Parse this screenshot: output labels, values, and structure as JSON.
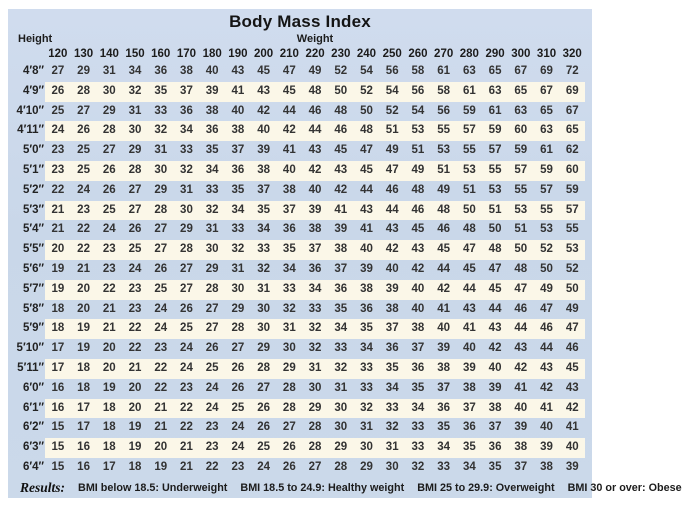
{
  "colors": {
    "panel_blue": "#cbd8ea",
    "stripe_cream": "#fbf7e8",
    "margin_white": "#ffffff",
    "text": "#333333"
  },
  "chart_data": {
    "type": "table",
    "title": "Body Mass Index",
    "row_header_label": "Height",
    "col_header_label": "Weight",
    "columns": [
      120,
      130,
      140,
      150,
      160,
      170,
      180,
      190,
      200,
      210,
      220,
      230,
      240,
      250,
      260,
      270,
      280,
      290,
      300,
      310,
      320
    ],
    "rows": [
      {
        "height": "4′8″",
        "values": [
          27,
          29,
          31,
          34,
          36,
          38,
          40,
          43,
          45,
          47,
          49,
          52,
          54,
          56,
          58,
          61,
          63,
          65,
          67,
          69,
          72
        ]
      },
      {
        "height": "4′9″",
        "values": [
          26,
          28,
          30,
          32,
          35,
          37,
          39,
          41,
          43,
          45,
          48,
          50,
          52,
          54,
          56,
          58,
          61,
          63,
          65,
          67,
          69
        ]
      },
      {
        "height": "4′10″",
        "values": [
          25,
          27,
          29,
          31,
          33,
          36,
          38,
          40,
          42,
          44,
          46,
          48,
          50,
          52,
          54,
          56,
          59,
          61,
          63,
          65,
          67
        ]
      },
      {
        "height": "4′11″",
        "values": [
          24,
          26,
          28,
          30,
          32,
          34,
          36,
          38,
          40,
          42,
          44,
          46,
          48,
          51,
          53,
          55,
          57,
          59,
          60,
          63,
          65
        ]
      },
      {
        "height": "5′0″",
        "values": [
          23,
          25,
          27,
          29,
          31,
          33,
          35,
          37,
          39,
          41,
          43,
          45,
          47,
          49,
          51,
          53,
          55,
          57,
          59,
          61,
          62
        ]
      },
      {
        "height": "5′1″",
        "values": [
          23,
          25,
          26,
          28,
          30,
          32,
          34,
          36,
          38,
          40,
          42,
          43,
          45,
          47,
          49,
          51,
          53,
          55,
          57,
          59,
          60
        ]
      },
      {
        "height": "5′2″",
        "values": [
          22,
          24,
          26,
          27,
          29,
          31,
          33,
          35,
          37,
          38,
          40,
          42,
          44,
          46,
          48,
          49,
          51,
          53,
          55,
          57,
          59
        ]
      },
      {
        "height": "5′3″",
        "values": [
          21,
          23,
          25,
          27,
          28,
          30,
          32,
          34,
          35,
          37,
          39,
          41,
          43,
          44,
          46,
          48,
          50,
          51,
          53,
          55,
          57
        ]
      },
      {
        "height": "5′4″",
        "values": [
          21,
          22,
          24,
          26,
          27,
          29,
          31,
          33,
          34,
          36,
          38,
          39,
          41,
          43,
          45,
          46,
          48,
          50,
          51,
          53,
          55
        ]
      },
      {
        "height": "5′5″",
        "values": [
          20,
          22,
          23,
          25,
          27,
          28,
          30,
          32,
          33,
          35,
          37,
          38,
          40,
          42,
          43,
          45,
          47,
          48,
          50,
          52,
          53
        ]
      },
      {
        "height": "5′6″",
        "values": [
          19,
          21,
          23,
          24,
          26,
          27,
          29,
          31,
          32,
          34,
          36,
          37,
          39,
          40,
          42,
          44,
          45,
          47,
          48,
          50,
          52
        ]
      },
      {
        "height": "5′7″",
        "values": [
          19,
          20,
          22,
          23,
          25,
          27,
          28,
          30,
          31,
          33,
          34,
          36,
          38,
          39,
          40,
          42,
          44,
          45,
          47,
          49,
          50
        ]
      },
      {
        "height": "5′8″",
        "values": [
          18,
          20,
          21,
          23,
          24,
          26,
          27,
          29,
          30,
          32,
          33,
          35,
          36,
          38,
          40,
          41,
          43,
          44,
          46,
          47,
          49
        ]
      },
      {
        "height": "5′9″",
        "values": [
          18,
          19,
          21,
          22,
          24,
          25,
          27,
          28,
          30,
          31,
          32,
          34,
          35,
          37,
          38,
          40,
          41,
          43,
          44,
          46,
          47
        ]
      },
      {
        "height": "5′10″",
        "values": [
          17,
          19,
          20,
          22,
          23,
          24,
          26,
          27,
          29,
          30,
          32,
          33,
          34,
          36,
          37,
          39,
          40,
          42,
          43,
          44,
          46
        ]
      },
      {
        "height": "5′11″",
        "values": [
          17,
          18,
          20,
          21,
          22,
          24,
          25,
          26,
          28,
          29,
          31,
          32,
          33,
          35,
          36,
          38,
          39,
          40,
          42,
          43,
          45
        ]
      },
      {
        "height": "6′0″",
        "values": [
          16,
          18,
          19,
          20,
          22,
          23,
          24,
          26,
          27,
          28,
          30,
          31,
          33,
          34,
          35,
          37,
          38,
          39,
          41,
          42,
          43
        ]
      },
      {
        "height": "6′1″",
        "values": [
          16,
          17,
          18,
          20,
          21,
          22,
          24,
          25,
          26,
          28,
          29,
          30,
          32,
          33,
          34,
          36,
          37,
          38,
          40,
          41,
          42
        ]
      },
      {
        "height": "6′2″",
        "values": [
          15,
          17,
          18,
          19,
          21,
          22,
          23,
          24,
          26,
          27,
          28,
          30,
          31,
          32,
          33,
          35,
          36,
          37,
          39,
          40,
          41
        ]
      },
      {
        "height": "6′3″",
        "values": [
          15,
          16,
          18,
          19,
          20,
          21,
          23,
          24,
          25,
          26,
          28,
          29,
          30,
          31,
          33,
          34,
          35,
          36,
          38,
          39,
          40
        ]
      },
      {
        "height": "6′4″",
        "values": [
          15,
          16,
          17,
          18,
          19,
          21,
          22,
          23,
          24,
          26,
          27,
          28,
          29,
          30,
          32,
          33,
          34,
          35,
          37,
          38,
          39
        ]
      }
    ],
    "results": {
      "label": "Results:",
      "legend": [
        "BMI below 18.5: Underweight",
        "BMI 18.5 to 24.9: Healthy weight",
        "BMI 25 to 29.9: Overweight",
        "BMI 30 or over: Obese"
      ]
    }
  }
}
